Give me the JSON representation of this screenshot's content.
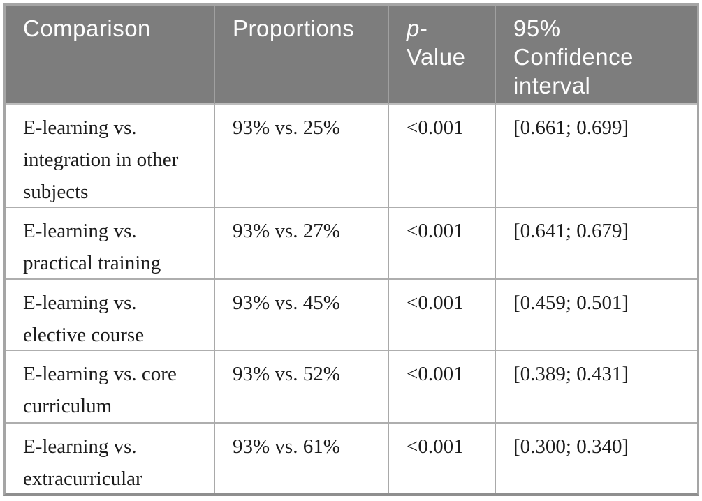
{
  "table": {
    "title_semantic": "pairwise-comparison-statistics-table",
    "header": {
      "comparison": "Comparison",
      "proportions": "Proportions",
      "p_italic": "p",
      "p_rest": "-\nValue",
      "confidence": "95%\nConfidence\ninterval"
    },
    "rows": [
      {
        "comparison": "E-learning vs.\nintegration in other\nsubjects",
        "proportions": "93% vs. 25%",
        "p_value": "<0.001",
        "ci": "[0.661; 0.699]"
      },
      {
        "comparison": "E-learning vs.\npractical training",
        "proportions": "93% vs. 27%",
        "p_value": "<0.001",
        "ci": "[0.641; 0.679]"
      },
      {
        "comparison": "E-learning vs.\nelective course",
        "proportions": "93% vs. 45%",
        "p_value": "<0.001",
        "ci": "[0.459; 0.501]"
      },
      {
        "comparison": "E-learning vs. core\ncurriculum",
        "proportions": "93% vs. 52%",
        "p_value": "<0.001",
        "ci": "[0.389; 0.431]"
      },
      {
        "comparison": "E-learning vs.\nextracurricular",
        "proportions": "93% vs. 61%",
        "p_value": "<0.001",
        "ci": "[0.300; 0.340]"
      }
    ],
    "colors": {
      "header_bg": "#7d7d7d",
      "header_text": "#fdfdfd",
      "body_text": "#1c1c1c",
      "grid_border": "#a9a9a9",
      "outer_bottom_border": "#8f8f8f",
      "page_bg": "#ffffff"
    }
  }
}
